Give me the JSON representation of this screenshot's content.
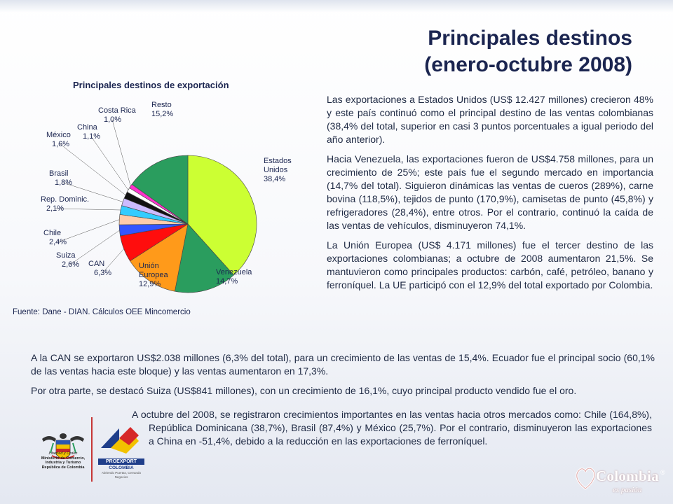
{
  "title": {
    "line1": "Principales destinos",
    "line2": "(enero-octubre 2008)"
  },
  "chart_data": {
    "type": "pie",
    "title": "Principales destinos de exportación",
    "slices": [
      {
        "name": "Estados Unidos",
        "label_lines": [
          "Estados",
          "Unidos"
        ],
        "value_label": "38,4%",
        "value": 38.4,
        "color": "#ccff33"
      },
      {
        "name": "Venezuela",
        "label_lines": [
          "Venezuela"
        ],
        "value_label": "14,7%",
        "value": 14.7,
        "color": "#2a9d5e"
      },
      {
        "name": "Unión Europea",
        "label_lines": [
          "Unión",
          "Europea"
        ],
        "value_label": "12,9%",
        "value": 12.9,
        "color": "#ff9a1a"
      },
      {
        "name": "CAN",
        "label_lines": [
          "CAN"
        ],
        "value_label": "6,3%",
        "value": 6.3,
        "color": "#ff0d0d"
      },
      {
        "name": "Suiza",
        "label_lines": [
          "Suiza"
        ],
        "value_label": "2,6%",
        "value": 2.6,
        "color": "#3355ff"
      },
      {
        "name": "Chile",
        "label_lines": [
          "Chile"
        ],
        "value_label": "2,4%",
        "value": 2.4,
        "color": "#ffccaa"
      },
      {
        "name": "Rep. Dominic.",
        "label_lines": [
          "Rep. Dominic."
        ],
        "value_label": "2,1%",
        "value": 2.1,
        "color": "#33ccff"
      },
      {
        "name": "Brasil",
        "label_lines": [
          "Brasil"
        ],
        "value_label": "1,8%",
        "value": 1.8,
        "color": "#ccbbff"
      },
      {
        "name": "México",
        "label_lines": [
          "México"
        ],
        "value_label": "1,6%",
        "value": 1.6,
        "color": "#111111"
      },
      {
        "name": "China",
        "label_lines": [
          "China"
        ],
        "value_label": "1,1%",
        "value": 1.1,
        "color": "#ffffff"
      },
      {
        "name": "Costa Rica",
        "label_lines": [
          "Costa Rica"
        ],
        "value_label": "1,0%",
        "value": 1.0,
        "color": "#ff33cc"
      },
      {
        "name": "Resto",
        "label_lines": [
          "Resto"
        ],
        "value_label": "15,2%",
        "value": 15.2,
        "color": "#2a9d5e"
      }
    ],
    "source": "Fuente: Dane - DIAN. Cálculos OEE Mincomercio"
  },
  "paragraphs_right": [
    "Las exportaciones a Estados Unidos (US$ 12.427 millones) crecieron 48% y este país continuó como el principal destino de las ventas colombianas (38,4% del total, superior en casi 3 puntos porcentuales a igual periodo del año anterior).",
    "Hacia Venezuela, las exportaciones fueron de US$4.758 millones, para un crecimiento de 25%; este país fue el segundo mercado en importancia (14,7% del total). Siguieron dinámicas las ventas de cueros (289%), carne bovina (118,5%), tejidos de punto (170,9%), camisetas de punto (45,8%) y refrigeradores (28,4%), entre otros. Por el contrario, continuó la caída de las ventas de vehículos, disminuyeron 74,1%.",
    "La Unión Europea (US$ 4.171 millones) fue el tercer destino de las exportaciones colombianas; a octubre de 2008 aumentaron 21,5%. Se mantuvieron como principales productos: carbón, café, petróleo, banano y ferroníquel. La UE participó con el 12,9% del total exportado por Colombia."
  ],
  "paragraphs_full": [
    "A la CAN se exportaron US$2.038 millones (6,3% del total), para un crecimiento de las ventas de 15,4%. Ecuador fue el principal socio (60,1% de las ventas hacia este bloque) y las ventas aumentaron en 17,3%.",
    "Por otra parte, se destacó Suiza (US$841 millones), con un crecimiento de 16,1%, cuyo principal producto vendido fue el oro."
  ],
  "paragraph_last": "A octubre del 2008, se registraron crecimientos importantes en las ventas hacia otros mercados como: Chile (164,8%), República Dominicana (38,7%), Brasil (87,4%) y México (25,7%). Por el contrario, disminuyeron las exportaciones a China en -51,4%, debido a la reducción en las exportaciones de ferroníquel.",
  "logos": {
    "ministerio_lines": [
      "Libertad y Orden",
      "Ministerio de Comercio,",
      "Industria y Turismo",
      "República de Colombia"
    ],
    "proexport_name": "PROEXPORT",
    "proexport_sub": "COLOMBIA",
    "proexport_tag": "Abriendo Puertas, Cerrando Negocios",
    "colombia_name": "Colombia",
    "colombia_reg": "®",
    "colombia_tag": "es pasión"
  }
}
